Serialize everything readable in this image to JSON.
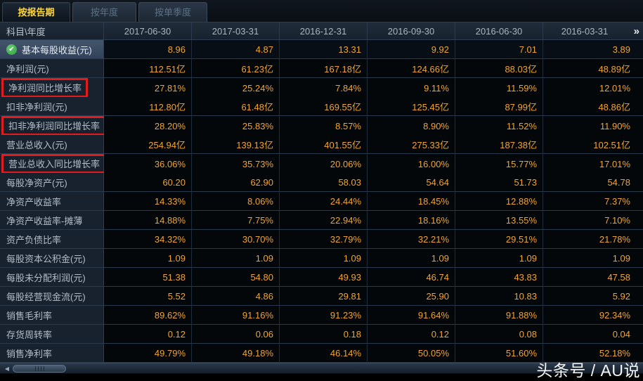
{
  "tabs": [
    {
      "label": "按报告期",
      "active": true
    },
    {
      "label": "按年度",
      "active": false
    },
    {
      "label": "按单季度",
      "active": false
    }
  ],
  "table": {
    "corner_header": "科目\\年度",
    "columns": [
      "2017-06-30",
      "2017-03-31",
      "2016-12-31",
      "2016-09-30",
      "2016-06-30",
      "2016-03-31"
    ],
    "more_icon": "»",
    "check_glyph": "✔",
    "rows": [
      {
        "label": "基本每股收益(元)",
        "checked": true,
        "values": [
          "8.96",
          "4.87",
          "13.31",
          "9.92",
          "7.01",
          "3.89"
        ]
      },
      {
        "label": "净利润(元)",
        "values": [
          "112.51亿",
          "61.23亿",
          "167.18亿",
          "124.66亿",
          "88.03亿",
          "48.89亿"
        ]
      },
      {
        "label": "净利润同比增长率",
        "annotated": true,
        "values": [
          "27.81%",
          "25.24%",
          "7.84%",
          "9.11%",
          "11.59%",
          "12.01%"
        ]
      },
      {
        "label": "扣非净利润(元)",
        "values": [
          "112.80亿",
          "61.48亿",
          "169.55亿",
          "125.45亿",
          "87.99亿",
          "48.86亿"
        ]
      },
      {
        "label": "扣非净利润同比增长率",
        "annotated": true,
        "values": [
          "28.20%",
          "25.83%",
          "8.57%",
          "8.90%",
          "11.52%",
          "11.90%"
        ]
      },
      {
        "label": "营业总收入(元)",
        "values": [
          "254.94亿",
          "139.13亿",
          "401.55亿",
          "275.33亿",
          "187.38亿",
          "102.51亿"
        ]
      },
      {
        "label": "营业总收入同比增长率",
        "annotated": true,
        "values": [
          "36.06%",
          "35.73%",
          "20.06%",
          "16.00%",
          "15.77%",
          "17.01%"
        ]
      },
      {
        "label": "每股净资产(元)",
        "values": [
          "60.20",
          "62.90",
          "58.03",
          "54.64",
          "51.73",
          "54.78"
        ]
      },
      {
        "label": "净资产收益率",
        "values": [
          "14.33%",
          "8.06%",
          "24.44%",
          "18.45%",
          "12.88%",
          "7.37%"
        ]
      },
      {
        "label": "净资产收益率-摊薄",
        "values": [
          "14.88%",
          "7.75%",
          "22.94%",
          "18.16%",
          "13.55%",
          "7.10%"
        ]
      },
      {
        "label": "资产负债比率",
        "values": [
          "34.32%",
          "30.70%",
          "32.79%",
          "32.21%",
          "29.51%",
          "21.78%"
        ]
      },
      {
        "label": "每股资本公积金(元)",
        "values": [
          "1.09",
          "1.09",
          "1.09",
          "1.09",
          "1.09",
          "1.09"
        ]
      },
      {
        "label": "每股未分配利润(元)",
        "values": [
          "51.38",
          "54.80",
          "49.93",
          "46.74",
          "43.83",
          "47.58"
        ]
      },
      {
        "label": "每股经营现金流(元)",
        "values": [
          "5.52",
          "4.86",
          "29.81",
          "25.90",
          "10.83",
          "5.92"
        ]
      },
      {
        "label": "销售毛利率",
        "values": [
          "89.62%",
          "91.16%",
          "91.23%",
          "91.64%",
          "91.88%",
          "92.34%"
        ]
      },
      {
        "label": "存货周转率",
        "values": [
          "0.12",
          "0.06",
          "0.18",
          "0.12",
          "0.08",
          "0.04"
        ]
      },
      {
        "label": "销售净利率",
        "values": [
          "49.79%",
          "49.18%",
          "46.14%",
          "50.05%",
          "51.60%",
          "52.18%"
        ]
      }
    ]
  },
  "scrollbar": {
    "left_arrow_glyph": "◀"
  },
  "watermark": "头条号 / AU说",
  "colors": {
    "accent_yellow": "#ffd83c",
    "value_amber": "#f1a52f",
    "annotation_red": "#e31b1b",
    "check_green": "#3fb14a"
  }
}
